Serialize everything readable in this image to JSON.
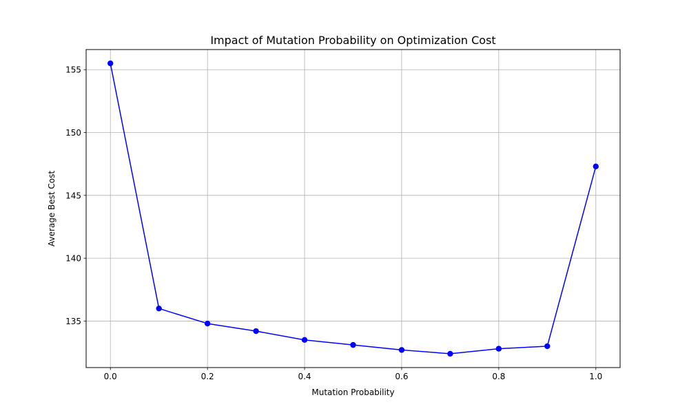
{
  "chart_data": {
    "type": "line",
    "title": "Impact of Mutation Probability on Optimization Cost",
    "xlabel": "Mutation Probability",
    "ylabel": "Average Best Cost",
    "xlim": [
      -0.05,
      1.05
    ],
    "ylim": [
      131.3,
      156.6
    ],
    "xticks": [
      0.0,
      0.2,
      0.4,
      0.6,
      0.8,
      1.0
    ],
    "xtick_labels": [
      "0.0",
      "0.2",
      "0.4",
      "0.6",
      "0.8",
      "1.0"
    ],
    "yticks": [
      135,
      140,
      145,
      150,
      155
    ],
    "ytick_labels": [
      "135",
      "140",
      "145",
      "150",
      "155"
    ],
    "grid": true,
    "legend": false,
    "series": [
      {
        "color": "#0000ff",
        "marker": "circle",
        "x": [
          0.0,
          0.1,
          0.2,
          0.3,
          0.4,
          0.5,
          0.6,
          0.7,
          0.8,
          0.9,
          1.0
        ],
        "y": [
          155.5,
          136.0,
          134.8,
          134.2,
          133.5,
          133.1,
          132.7,
          132.4,
          132.8,
          133.0,
          147.3
        ]
      }
    ]
  }
}
